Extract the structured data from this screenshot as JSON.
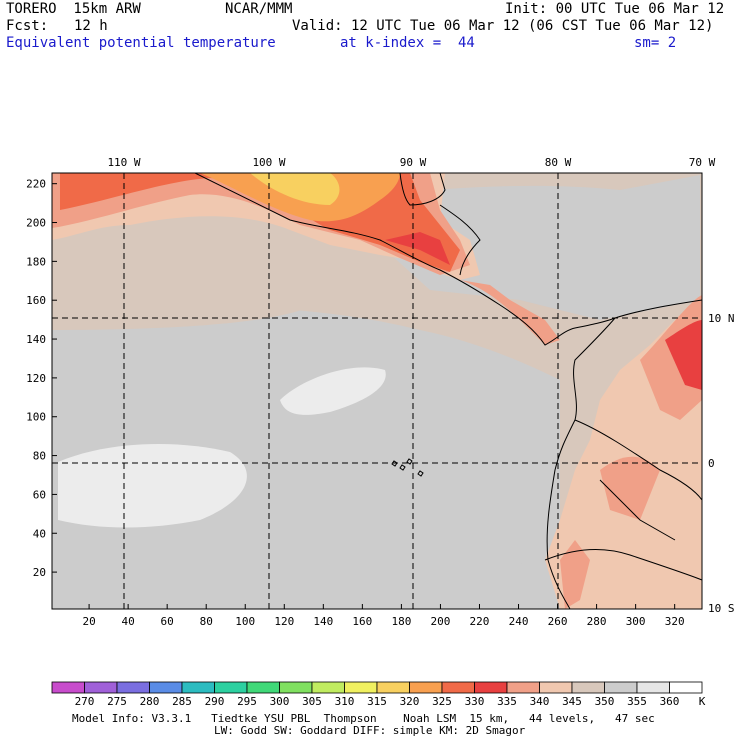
{
  "header": {
    "model": "TORERO  15km ARW",
    "org": "NCAR/MMM",
    "init": "Init: 00 UTC Tue 06 Mar 12",
    "fcst_label": "Fcst:",
    "fcst_value": "12 h",
    "valid": "Valid: 12 UTC Tue 06 Mar 12 (06 CST Tue 06 Mar 12)",
    "field": "Equivalent potential temperature",
    "level": "at k-index =  44",
    "smooth": "sm= 2"
  },
  "map": {
    "lon_labels": [
      "110 W",
      "100 W",
      "90 W",
      "80 W",
      "70 W"
    ],
    "lat_labels": [
      "10 N",
      "0",
      "10 S"
    ],
    "y_ticks": [
      "220",
      "200",
      "180",
      "160",
      "140",
      "120",
      "100",
      "80",
      "60",
      "40",
      "20"
    ],
    "x_ticks": [
      "20",
      "40",
      "60",
      "80",
      "100",
      "120",
      "140",
      "160",
      "180",
      "200",
      "220",
      "240",
      "260",
      "280",
      "300",
      "320"
    ]
  },
  "colorbar": {
    "levels": [
      "270",
      "275",
      "280",
      "285",
      "290",
      "295",
      "300",
      "305",
      "310",
      "315",
      "320",
      "325",
      "330",
      "335",
      "340",
      "345",
      "350",
      "355",
      "360"
    ],
    "unit": "K",
    "colors": [
      "#c84ccc",
      "#a060d8",
      "#7a6ee0",
      "#5a8ce6",
      "#2cbcc0",
      "#2cd0a0",
      "#40d878",
      "#80e060",
      "#c0ec60",
      "#f0f060",
      "#f8d060",
      "#f8a050",
      "#f06a48",
      "#e84040",
      "#f0a088",
      "#f0c8b0",
      "#d8c8bc",
      "#cccccc",
      "#e6e6e6",
      "#ffffff"
    ]
  },
  "footer": {
    "line1": "Model Info: V3.3.1   Tiedtke YSU PBL  Thompson    Noah LSM  15 km,   44 levels,   47 sec",
    "line2": "LW: Godd SW: Goddard DIFF: simple KM: 2D Smagor"
  }
}
